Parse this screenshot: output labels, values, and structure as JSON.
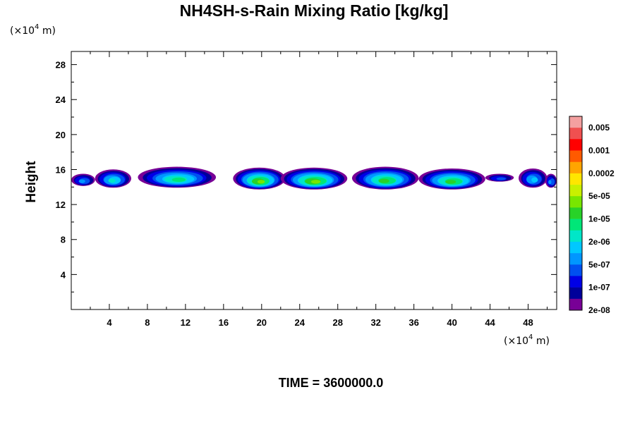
{
  "chart_data": {
    "type": "heatmap",
    "title": "NH4SH-s-Rain Mixing Ratio [kg/kg]",
    "ylabel": "Height",
    "x_unit": "(×10",
    "x_unit_exp": "4",
    "x_unit_tail": " m)",
    "y_unit": "(×10",
    "y_unit_exp": "4",
    "y_unit_tail": " m)",
    "xlim": [
      0,
      51
    ],
    "ylim": [
      0,
      29.5
    ],
    "x_ticks": [
      4,
      8,
      12,
      16,
      20,
      24,
      28,
      32,
      36,
      40,
      44,
      48
    ],
    "y_ticks": [
      4,
      8,
      12,
      16,
      20,
      24,
      28
    ],
    "x_tick_labels": [
      "4",
      "8",
      "12",
      "16",
      "20",
      "24",
      "28",
      "32",
      "36",
      "40",
      "44",
      "48"
    ],
    "y_tick_labels": [
      "4",
      "8",
      "12",
      "16",
      "20",
      "24",
      "28"
    ],
    "colorbar": {
      "colors": [
        "#f4a0a0",
        "#f05050",
        "#ff0000",
        "#ff5a00",
        "#ffa500",
        "#ffe600",
        "#c8f000",
        "#78e600",
        "#28d228",
        "#00e678",
        "#00e6c8",
        "#00c8ff",
        "#0096ff",
        "#0050f0",
        "#0000e6",
        "#00009a",
        "#780096"
      ],
      "labels": [
        "0.005",
        "0.001",
        "0.0002",
        "5e-05",
        "1e-05",
        "2e-06",
        "5e-07",
        "1e-07",
        "2e-08"
      ]
    },
    "cloud_blobs": [
      {
        "x": [
          0.0,
          2.5
        ],
        "y": [
          14.2,
          15.6
        ],
        "peak": 2
      },
      {
        "x": [
          2.5,
          6.3
        ],
        "y": [
          14.0,
          16.1
        ],
        "peak": 4
      },
      {
        "x": [
          7.0,
          15.2
        ],
        "y": [
          14.0,
          16.4
        ],
        "peak": 5
      },
      {
        "x": [
          17.0,
          22.5
        ],
        "y": [
          13.8,
          16.3
        ],
        "peak": 7
      },
      {
        "x": [
          22.0,
          29.0
        ],
        "y": [
          13.8,
          16.3
        ],
        "peak": 7
      },
      {
        "x": [
          29.5,
          36.5
        ],
        "y": [
          13.8,
          16.4
        ],
        "peak": 6
      },
      {
        "x": [
          36.5,
          43.5
        ],
        "y": [
          13.8,
          16.2
        ],
        "peak": 6
      },
      {
        "x": [
          43.5,
          46.5
        ],
        "y": [
          14.7,
          15.6
        ],
        "peak": 1
      },
      {
        "x": [
          47.0,
          50.0
        ],
        "y": [
          14.0,
          16.2
        ],
        "peak": 3
      },
      {
        "x": [
          49.8,
          51.0
        ],
        "y": [
          14.0,
          15.6
        ],
        "peak": 2
      }
    ]
  },
  "footer": {
    "time_label": "TIME = 3600000.0"
  }
}
